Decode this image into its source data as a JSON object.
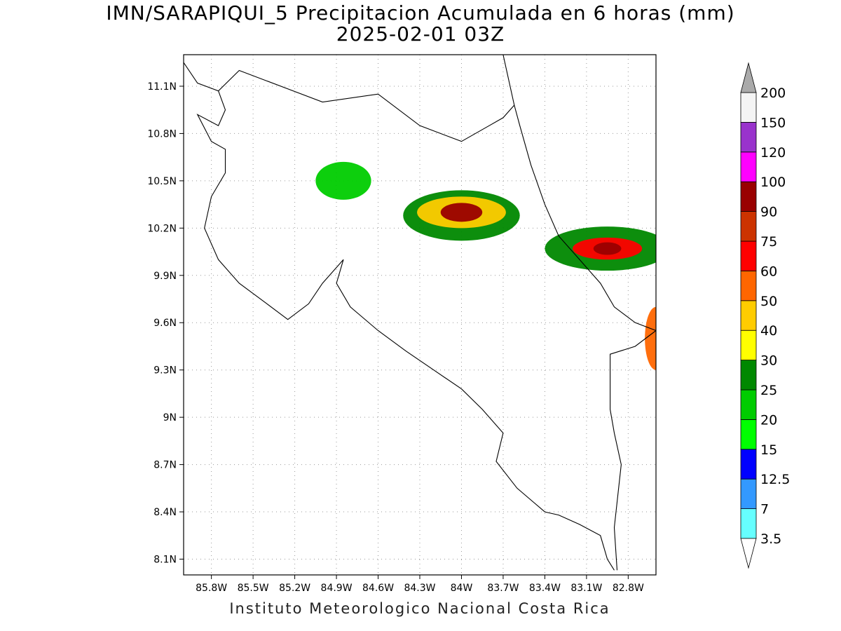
{
  "title": {
    "line1": "IMN/SARAPIQUI_5 Precipitacion Acumulada en 6 horas (mm)",
    "line2": "2025-02-01 03Z"
  },
  "footer": "Instituto Meteorologico Nacional Costa Rica",
  "map": {
    "lon_range": [
      -86.0,
      -82.6
    ],
    "lat_range": [
      8.0,
      11.3
    ],
    "x_ticks": [
      {
        "lon": -85.8,
        "label": "85.8W"
      },
      {
        "lon": -85.5,
        "label": "85.5W"
      },
      {
        "lon": -85.2,
        "label": "85.2W"
      },
      {
        "lon": -84.9,
        "label": "84.9W"
      },
      {
        "lon": -84.6,
        "label": "84.6W"
      },
      {
        "lon": -84.3,
        "label": "84.3W"
      },
      {
        "lon": -84.0,
        "label": "84W"
      },
      {
        "lon": -83.7,
        "label": "83.7W"
      },
      {
        "lon": -83.4,
        "label": "83.4W"
      },
      {
        "lon": -83.1,
        "label": "83.1W"
      },
      {
        "lon": -82.8,
        "label": "82.8W"
      }
    ],
    "y_ticks": [
      {
        "lat": 8.1,
        "label": "8.1N"
      },
      {
        "lat": 8.4,
        "label": "8.4N"
      },
      {
        "lat": 8.7,
        "label": "8.7N"
      },
      {
        "lat": 9.0,
        "label": "9N"
      },
      {
        "lat": 9.3,
        "label": "9.3N"
      },
      {
        "lat": 9.6,
        "label": "9.6N"
      },
      {
        "lat": 9.9,
        "label": "9.9N"
      },
      {
        "lat": 10.2,
        "label": "10.2N"
      },
      {
        "lat": 10.5,
        "label": "10.5N"
      },
      {
        "lat": 10.8,
        "label": "10.8N"
      },
      {
        "lat": 11.1,
        "label": "11.1N"
      }
    ],
    "grid": true,
    "coastline_lonlat": [
      [
        -86.0,
        11.25
      ],
      [
        -85.9,
        11.12
      ],
      [
        -85.75,
        11.07
      ],
      [
        -85.7,
        10.95
      ],
      [
        -85.75,
        10.85
      ],
      [
        -85.9,
        10.92
      ],
      [
        -85.8,
        10.75
      ],
      [
        -85.7,
        10.7
      ],
      [
        -85.7,
        10.55
      ],
      [
        -85.8,
        10.4
      ],
      [
        -85.85,
        10.2
      ],
      [
        -85.75,
        10.0
      ],
      [
        -85.6,
        9.85
      ],
      [
        -85.4,
        9.72
      ],
      [
        -85.25,
        9.62
      ],
      [
        -85.1,
        9.72
      ],
      [
        -85.0,
        9.85
      ],
      [
        -84.85,
        10.0
      ],
      [
        -84.9,
        9.85
      ],
      [
        -84.8,
        9.7
      ],
      [
        -84.6,
        9.55
      ],
      [
        -84.4,
        9.42
      ],
      [
        -84.2,
        9.3
      ],
      [
        -84.0,
        9.18
      ],
      [
        -83.85,
        9.05
      ],
      [
        -83.7,
        8.9
      ],
      [
        -83.75,
        8.72
      ],
      [
        -83.6,
        8.55
      ],
      [
        -83.4,
        8.4
      ],
      [
        -83.3,
        8.38
      ],
      [
        -83.15,
        8.32
      ],
      [
        -83.0,
        8.25
      ],
      [
        -82.95,
        8.1
      ],
      [
        -82.9,
        8.03
      ]
    ],
    "caribbean_coast_lonlat": [
      [
        -83.7,
        11.3
      ],
      [
        -83.62,
        10.98
      ],
      [
        -83.58,
        10.85
      ],
      [
        -83.5,
        10.6
      ],
      [
        -83.4,
        10.35
      ],
      [
        -83.3,
        10.15
      ],
      [
        -83.15,
        10.0
      ],
      [
        -83.0,
        9.85
      ],
      [
        -82.9,
        9.7
      ],
      [
        -82.75,
        9.6
      ],
      [
        -82.6,
        9.55
      ]
    ],
    "border_north_lonlat": [
      [
        -85.75,
        11.07
      ],
      [
        -85.6,
        11.2
      ],
      [
        -85.0,
        11.0
      ],
      [
        -84.6,
        11.05
      ],
      [
        -84.3,
        10.85
      ],
      [
        -84.0,
        10.75
      ],
      [
        -83.8,
        10.85
      ],
      [
        -83.7,
        10.9
      ],
      [
        -83.62,
        10.98
      ]
    ],
    "border_south_lonlat": [
      [
        -82.6,
        9.55
      ],
      [
        -82.75,
        9.45
      ],
      [
        -82.93,
        9.4
      ],
      [
        -82.93,
        9.05
      ],
      [
        -82.9,
        8.9
      ],
      [
        -82.85,
        8.7
      ],
      [
        -82.9,
        8.3
      ],
      [
        -82.88,
        8.03
      ]
    ],
    "precip_cells": [
      {
        "lon": -84.0,
        "lat": 10.28,
        "rx": 0.42,
        "ry": 0.16,
        "level": 5
      },
      {
        "lon": -84.0,
        "lat": 10.3,
        "rx": 0.32,
        "ry": 0.1,
        "level": 7
      },
      {
        "lon": -84.0,
        "lat": 10.3,
        "rx": 0.15,
        "ry": 0.06,
        "level": 11
      },
      {
        "lon": -82.95,
        "lat": 10.07,
        "rx": 0.45,
        "ry": 0.14,
        "level": 5
      },
      {
        "lon": -82.95,
        "lat": 10.07,
        "rx": 0.25,
        "ry": 0.07,
        "level": 9
      },
      {
        "lon": -82.95,
        "lat": 10.07,
        "rx": 0.1,
        "ry": 0.04,
        "level": 11
      },
      {
        "lon": -84.85,
        "lat": 10.5,
        "rx": 0.2,
        "ry": 0.12,
        "level": 4
      },
      {
        "lon": -82.6,
        "lat": 9.5,
        "rx": 0.08,
        "ry": 0.2,
        "level": 8
      }
    ]
  },
  "colorbar": {
    "labels": [
      "3.5",
      "7",
      "12.5",
      "15",
      "20",
      "25",
      "30",
      "40",
      "50",
      "60",
      "75",
      "90",
      "100",
      "120",
      "150",
      "200"
    ],
    "colors": [
      "#66ffff",
      "#3399ff",
      "#0000ff",
      "#00ff00",
      "#00cc00",
      "#008800",
      "#ffff00",
      "#ffcc00",
      "#ff6600",
      "#ff0000",
      "#cc3300",
      "#990000",
      "#ff00ff",
      "#9933cc",
      "#f4f4f4",
      "#aaaaaa"
    ]
  }
}
